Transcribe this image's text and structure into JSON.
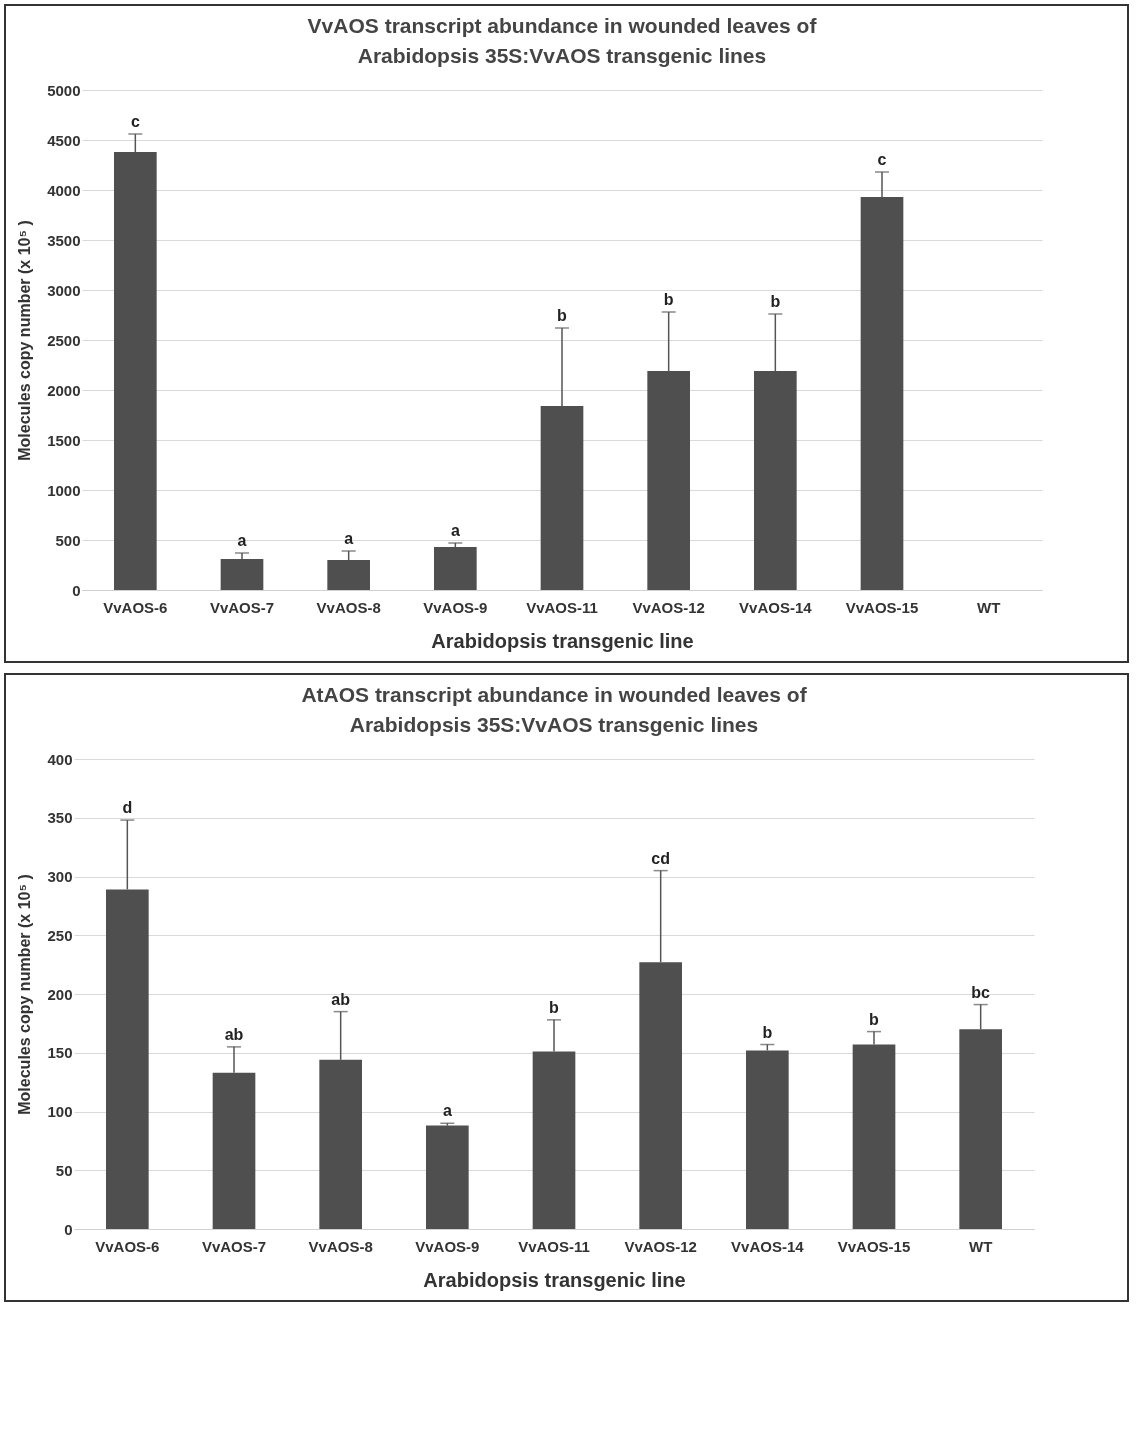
{
  "chart_data": [
    {
      "type": "bar",
      "title": "VvAOS transcript abundance in wounded leaves of\nArabidopsis 35S:VvAOS transgenic lines",
      "xlabel": "Arabidopsis transgenic line",
      "ylabel": "Molecules copy number (x 10⁵ )",
      "categories": [
        "VvAOS-6",
        "VvAOS-7",
        "VvAOS-8",
        "VvAOS-9",
        "VvAOS-11",
        "VvAOS-12",
        "VvAOS-14",
        "VvAOS-15",
        "WT"
      ],
      "values": [
        4380,
        310,
        300,
        430,
        1840,
        2190,
        2190,
        3930,
        0
      ],
      "errors": [
        [
          4380,
          4560
        ],
        [
          310,
          370
        ],
        [
          300,
          390
        ],
        [
          430,
          470
        ],
        [
          1840,
          2620
        ],
        [
          2190,
          2780
        ],
        [
          2190,
          2760
        ],
        [
          3930,
          4180
        ],
        null
      ],
      "color": "#4f4f4f",
      "ylim": [
        0,
        5000
      ],
      "yticks": [
        0,
        500,
        1000,
        1500,
        2000,
        2500,
        3000,
        3500,
        4000,
        4500,
        5000
      ],
      "grid": "y",
      "annotations": [
        {
          "text": "c",
          "x": "VvAOS-6",
          "y": 4560
        },
        {
          "text": "a",
          "x": "VvAOS-7",
          "y": 370
        },
        {
          "text": "a",
          "x": "VvAOS-8",
          "y": 390
        },
        {
          "text": "a",
          "x": "VvAOS-9",
          "y": 470
        },
        {
          "text": "b",
          "x": "VvAOS-11",
          "y": 2620
        },
        {
          "text": "b",
          "x": "VvAOS-12",
          "y": 2780
        },
        {
          "text": "b",
          "x": "VvAOS-14",
          "y": 2760
        },
        {
          "text": "c",
          "x": "VvAOS-15",
          "y": 4180
        }
      ]
    },
    {
      "type": "bar",
      "title": "AtAOS transcript abundance in wounded leaves of\nArabidopsis 35S:VvAOS transgenic lines",
      "xlabel": "Arabidopsis transgenic line",
      "ylabel": "Molecules copy number (x 10⁵ )",
      "categories": [
        "VvAOS-6",
        "VvAOS-7",
        "VvAOS-8",
        "VvAOS-9",
        "VvAOS-11",
        "VvAOS-12",
        "VvAOS-14",
        "VvAOS-15",
        "WT"
      ],
      "values": [
        289,
        133,
        144,
        88,
        151,
        227,
        152,
        157,
        170
      ],
      "errors": [
        [
          289,
          348
        ],
        [
          133,
          155
        ],
        [
          144,
          185
        ],
        [
          88,
          90
        ],
        [
          151,
          178
        ],
        [
          227,
          305
        ],
        [
          152,
          157
        ],
        [
          157,
          168
        ],
        [
          170,
          191
        ]
      ],
      "color": "#4f4f4f",
      "ylim": [
        0,
        400
      ],
      "yticks": [
        0,
        50,
        100,
        150,
        200,
        250,
        300,
        350,
        400
      ],
      "grid": "y",
      "annotations": [
        {
          "text": "d",
          "x": "VvAOS-6",
          "y": 348
        },
        {
          "text": "ab",
          "x": "VvAOS-7",
          "y": 155
        },
        {
          "text": "ab",
          "x": "VvAOS-8",
          "y": 185
        },
        {
          "text": "a",
          "x": "VvAOS-9",
          "y": 90
        },
        {
          "text": "b",
          "x": "VvAOS-11",
          "y": 178
        },
        {
          "text": "cd",
          "x": "VvAOS-12",
          "y": 305
        },
        {
          "text": "b",
          "x": "VvAOS-14",
          "y": 157
        },
        {
          "text": "b",
          "x": "VvAOS-15",
          "y": 168
        },
        {
          "text": "bc",
          "x": "WT",
          "y": 191
        }
      ]
    }
  ]
}
